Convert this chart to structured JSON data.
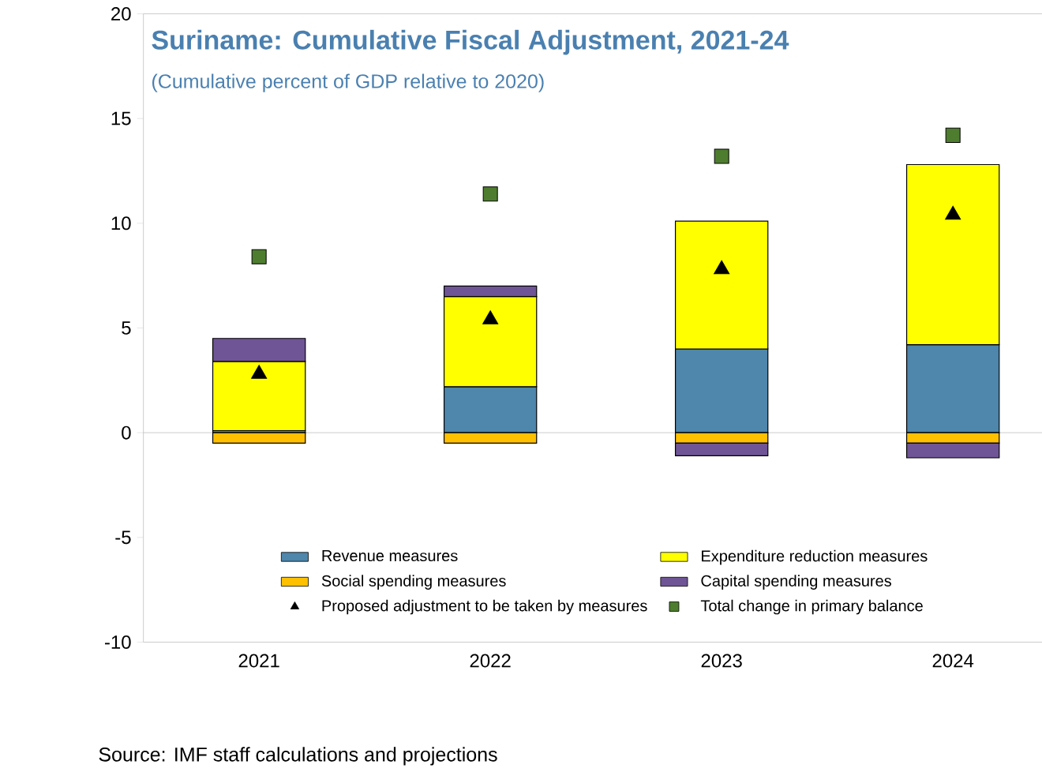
{
  "chart_data": {
    "type": "bar",
    "stacked": true,
    "title": "Suriname: Cumulative Fiscal Adjustment, 2021-24",
    "subtitle": "(Cumulative percent of GDP relative to 2020)",
    "categories": [
      "2021",
      "2022",
      "2023",
      "2024"
    ],
    "series": [
      {
        "name": "Revenue measures",
        "color": "#4e86ac",
        "values": [
          0.1,
          2.2,
          4.0,
          4.2
        ]
      },
      {
        "name": "Expenditure reduction measures",
        "color": "#ffff00",
        "values": [
          3.3,
          4.3,
          6.1,
          8.6
        ]
      },
      {
        "name": "Social spending measures",
        "color": "#ffc000",
        "values": [
          -0.5,
          -0.5,
          -0.5,
          -0.5
        ]
      },
      {
        "name": "Capital spending measures",
        "color": "#6f5596",
        "values": [
          1.1,
          0.5,
          -0.6,
          -0.7
        ]
      },
      {
        "name": "Proposed adjustment to be taken by measures",
        "type": "scatter",
        "marker": "triangle",
        "color": "#000000",
        "values": [
          2.8,
          5.4,
          7.8,
          10.4
        ]
      },
      {
        "name": "Total change in primary balance",
        "type": "scatter",
        "marker": "square",
        "color": "#4e7d2f",
        "values": [
          8.4,
          11.4,
          13.2,
          14.2
        ]
      }
    ],
    "ylim": [
      -10,
      20
    ],
    "yticks": [
      -10,
      -5,
      0,
      5,
      10,
      15,
      20
    ],
    "grid": false,
    "legend": "bottom",
    "ref_lines": [
      {
        "axis": "y",
        "value": 0,
        "color": "#bfbfbf"
      }
    ],
    "annotations": [
      "Source: IMF staff calculations and projections"
    ]
  }
}
